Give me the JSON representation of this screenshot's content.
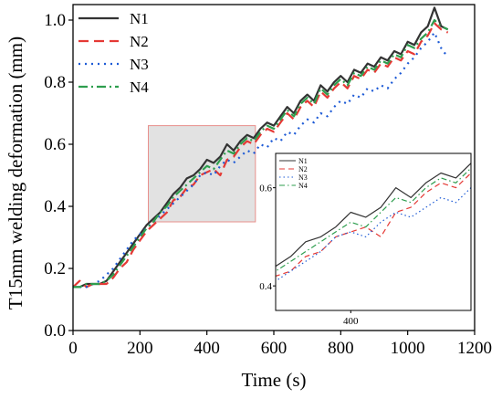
{
  "chart_data": {
    "type": "line",
    "xlabel": "Time (s)",
    "ylabel": "T15mm welding deformation (mm)",
    "xlim": [
      0,
      1200
    ],
    "ylim": [
      0,
      1.05
    ],
    "xticks": [
      0,
      200,
      400,
      600,
      800,
      1000,
      1200
    ],
    "xtick_labels": [
      "0",
      "200",
      "400",
      "600",
      "800",
      "1000",
      "1200"
    ],
    "yticks": [
      0.0,
      0.2,
      0.4,
      0.6,
      0.8,
      1.0
    ],
    "ytick_labels": [
      "0.0",
      "0.2",
      "0.4",
      "0.6",
      "0.8",
      "1.0"
    ],
    "grid": false,
    "legend_position": "top-left",
    "series": [
      {
        "name": "N1",
        "color": "#333333",
        "dash": "solid",
        "x": [
          0,
          20,
          40,
          60,
          80,
          100,
          120,
          140,
          160,
          180,
          200,
          220,
          240,
          260,
          280,
          300,
          320,
          340,
          360,
          380,
          400,
          420,
          440,
          460,
          480,
          500,
          520,
          540,
          560,
          580,
          600,
          620,
          640,
          660,
          680,
          700,
          720,
          740,
          760,
          780,
          800,
          820,
          840,
          860,
          880,
          900,
          920,
          940,
          960,
          980,
          1000,
          1020,
          1040,
          1060,
          1080,
          1100,
          1120
        ],
        "y": [
          0.14,
          0.14,
          0.15,
          0.15,
          0.15,
          0.16,
          0.19,
          0.22,
          0.25,
          0.28,
          0.31,
          0.34,
          0.36,
          0.38,
          0.41,
          0.44,
          0.46,
          0.49,
          0.5,
          0.52,
          0.55,
          0.54,
          0.56,
          0.6,
          0.58,
          0.61,
          0.63,
          0.62,
          0.65,
          0.67,
          0.66,
          0.69,
          0.72,
          0.7,
          0.74,
          0.76,
          0.74,
          0.79,
          0.77,
          0.8,
          0.82,
          0.8,
          0.84,
          0.83,
          0.86,
          0.85,
          0.88,
          0.87,
          0.9,
          0.89,
          0.93,
          0.92,
          0.96,
          0.98,
          1.04,
          0.98,
          0.97
        ]
      },
      {
        "name": "N2",
        "color": "#e53935",
        "dash": "long-dash",
        "x": [
          0,
          20,
          40,
          60,
          80,
          100,
          120,
          140,
          160,
          180,
          200,
          220,
          240,
          260,
          280,
          300,
          320,
          340,
          360,
          380,
          400,
          420,
          440,
          460,
          480,
          500,
          520,
          540,
          560,
          580,
          600,
          620,
          640,
          660,
          680,
          700,
          720,
          740,
          760,
          780,
          800,
          820,
          840,
          860,
          880,
          900,
          920,
          940,
          960,
          980,
          1000,
          1020,
          1040,
          1060,
          1080,
          1100,
          1120
        ],
        "y": [
          0.14,
          0.16,
          0.14,
          0.15,
          0.15,
          0.15,
          0.17,
          0.2,
          0.22,
          0.26,
          0.29,
          0.32,
          0.34,
          0.36,
          0.38,
          0.42,
          0.43,
          0.46,
          0.47,
          0.5,
          0.51,
          0.52,
          0.5,
          0.55,
          0.56,
          0.59,
          0.61,
          0.6,
          0.63,
          0.65,
          0.64,
          0.67,
          0.7,
          0.68,
          0.72,
          0.74,
          0.72,
          0.77,
          0.75,
          0.78,
          0.8,
          0.78,
          0.82,
          0.81,
          0.84,
          0.83,
          0.86,
          0.85,
          0.88,
          0.87,
          0.9,
          0.89,
          0.93,
          0.95,
          0.99,
          0.97,
          0.96
        ]
      },
      {
        "name": "N3",
        "color": "#1e5bd6",
        "dash": "dotted",
        "x": [
          0,
          20,
          40,
          60,
          80,
          100,
          120,
          140,
          160,
          180,
          200,
          220,
          240,
          260,
          280,
          300,
          320,
          340,
          360,
          380,
          400,
          420,
          440,
          460,
          480,
          500,
          520,
          540,
          560,
          580,
          600,
          620,
          640,
          660,
          680,
          700,
          720,
          740,
          760,
          780,
          800,
          820,
          840,
          860,
          880,
          900,
          920,
          940,
          960,
          980,
          1000,
          1020,
          1040,
          1060,
          1080,
          1100,
          1120
        ],
        "y": [
          0.14,
          0.14,
          0.14,
          0.15,
          0.16,
          0.18,
          0.2,
          0.23,
          0.26,
          0.29,
          0.31,
          0.33,
          0.35,
          0.37,
          0.39,
          0.41,
          0.43,
          0.45,
          0.47,
          0.5,
          0.51,
          0.5,
          0.53,
          0.55,
          0.54,
          0.56,
          0.58,
          0.57,
          0.6,
          0.59,
          0.62,
          0.61,
          0.64,
          0.63,
          0.66,
          0.68,
          0.67,
          0.7,
          0.69,
          0.72,
          0.74,
          0.73,
          0.76,
          0.75,
          0.78,
          0.77,
          0.79,
          0.78,
          0.81,
          0.83,
          0.86,
          0.88,
          0.91,
          0.93,
          0.96,
          0.91,
          0.88
        ]
      },
      {
        "name": "N4",
        "color": "#2e9e4e",
        "dash": "dash-dot",
        "x": [
          0,
          20,
          40,
          60,
          80,
          100,
          120,
          140,
          160,
          180,
          200,
          220,
          240,
          260,
          280,
          300,
          320,
          340,
          360,
          380,
          400,
          420,
          440,
          460,
          480,
          500,
          520,
          540,
          560,
          580,
          600,
          620,
          640,
          660,
          680,
          700,
          720,
          740,
          760,
          780,
          800,
          820,
          840,
          860,
          880,
          900,
          920,
          940,
          960,
          980,
          1000,
          1020,
          1040,
          1060,
          1080,
          1100,
          1120
        ],
        "y": [
          0.14,
          0.14,
          0.15,
          0.15,
          0.15,
          0.16,
          0.18,
          0.21,
          0.24,
          0.27,
          0.3,
          0.33,
          0.35,
          0.38,
          0.4,
          0.43,
          0.45,
          0.47,
          0.49,
          0.51,
          0.53,
          0.52,
          0.55,
          0.58,
          0.57,
          0.6,
          0.62,
          0.61,
          0.64,
          0.66,
          0.65,
          0.68,
          0.71,
          0.69,
          0.73,
          0.75,
          0.73,
          0.78,
          0.76,
          0.79,
          0.81,
          0.79,
          0.83,
          0.82,
          0.85,
          0.84,
          0.87,
          0.86,
          0.89,
          0.88,
          0.92,
          0.91,
          0.94,
          0.96,
          1.0,
          0.98,
          0.97
        ]
      }
    ],
    "zoom_region": {
      "x": [
        225,
        545
      ],
      "y": [
        0.35,
        0.66
      ]
    },
    "inset": {
      "xlim": [
        300,
        560
      ],
      "ylim": [
        0.35,
        0.67
      ],
      "xticks": [
        400
      ],
      "xtick_labels": [
        "400"
      ],
      "yticks": [
        0.4,
        0.6
      ],
      "ytick_labels": [
        "0.4",
        "0.6"
      ],
      "legend_position": "top-left"
    }
  }
}
